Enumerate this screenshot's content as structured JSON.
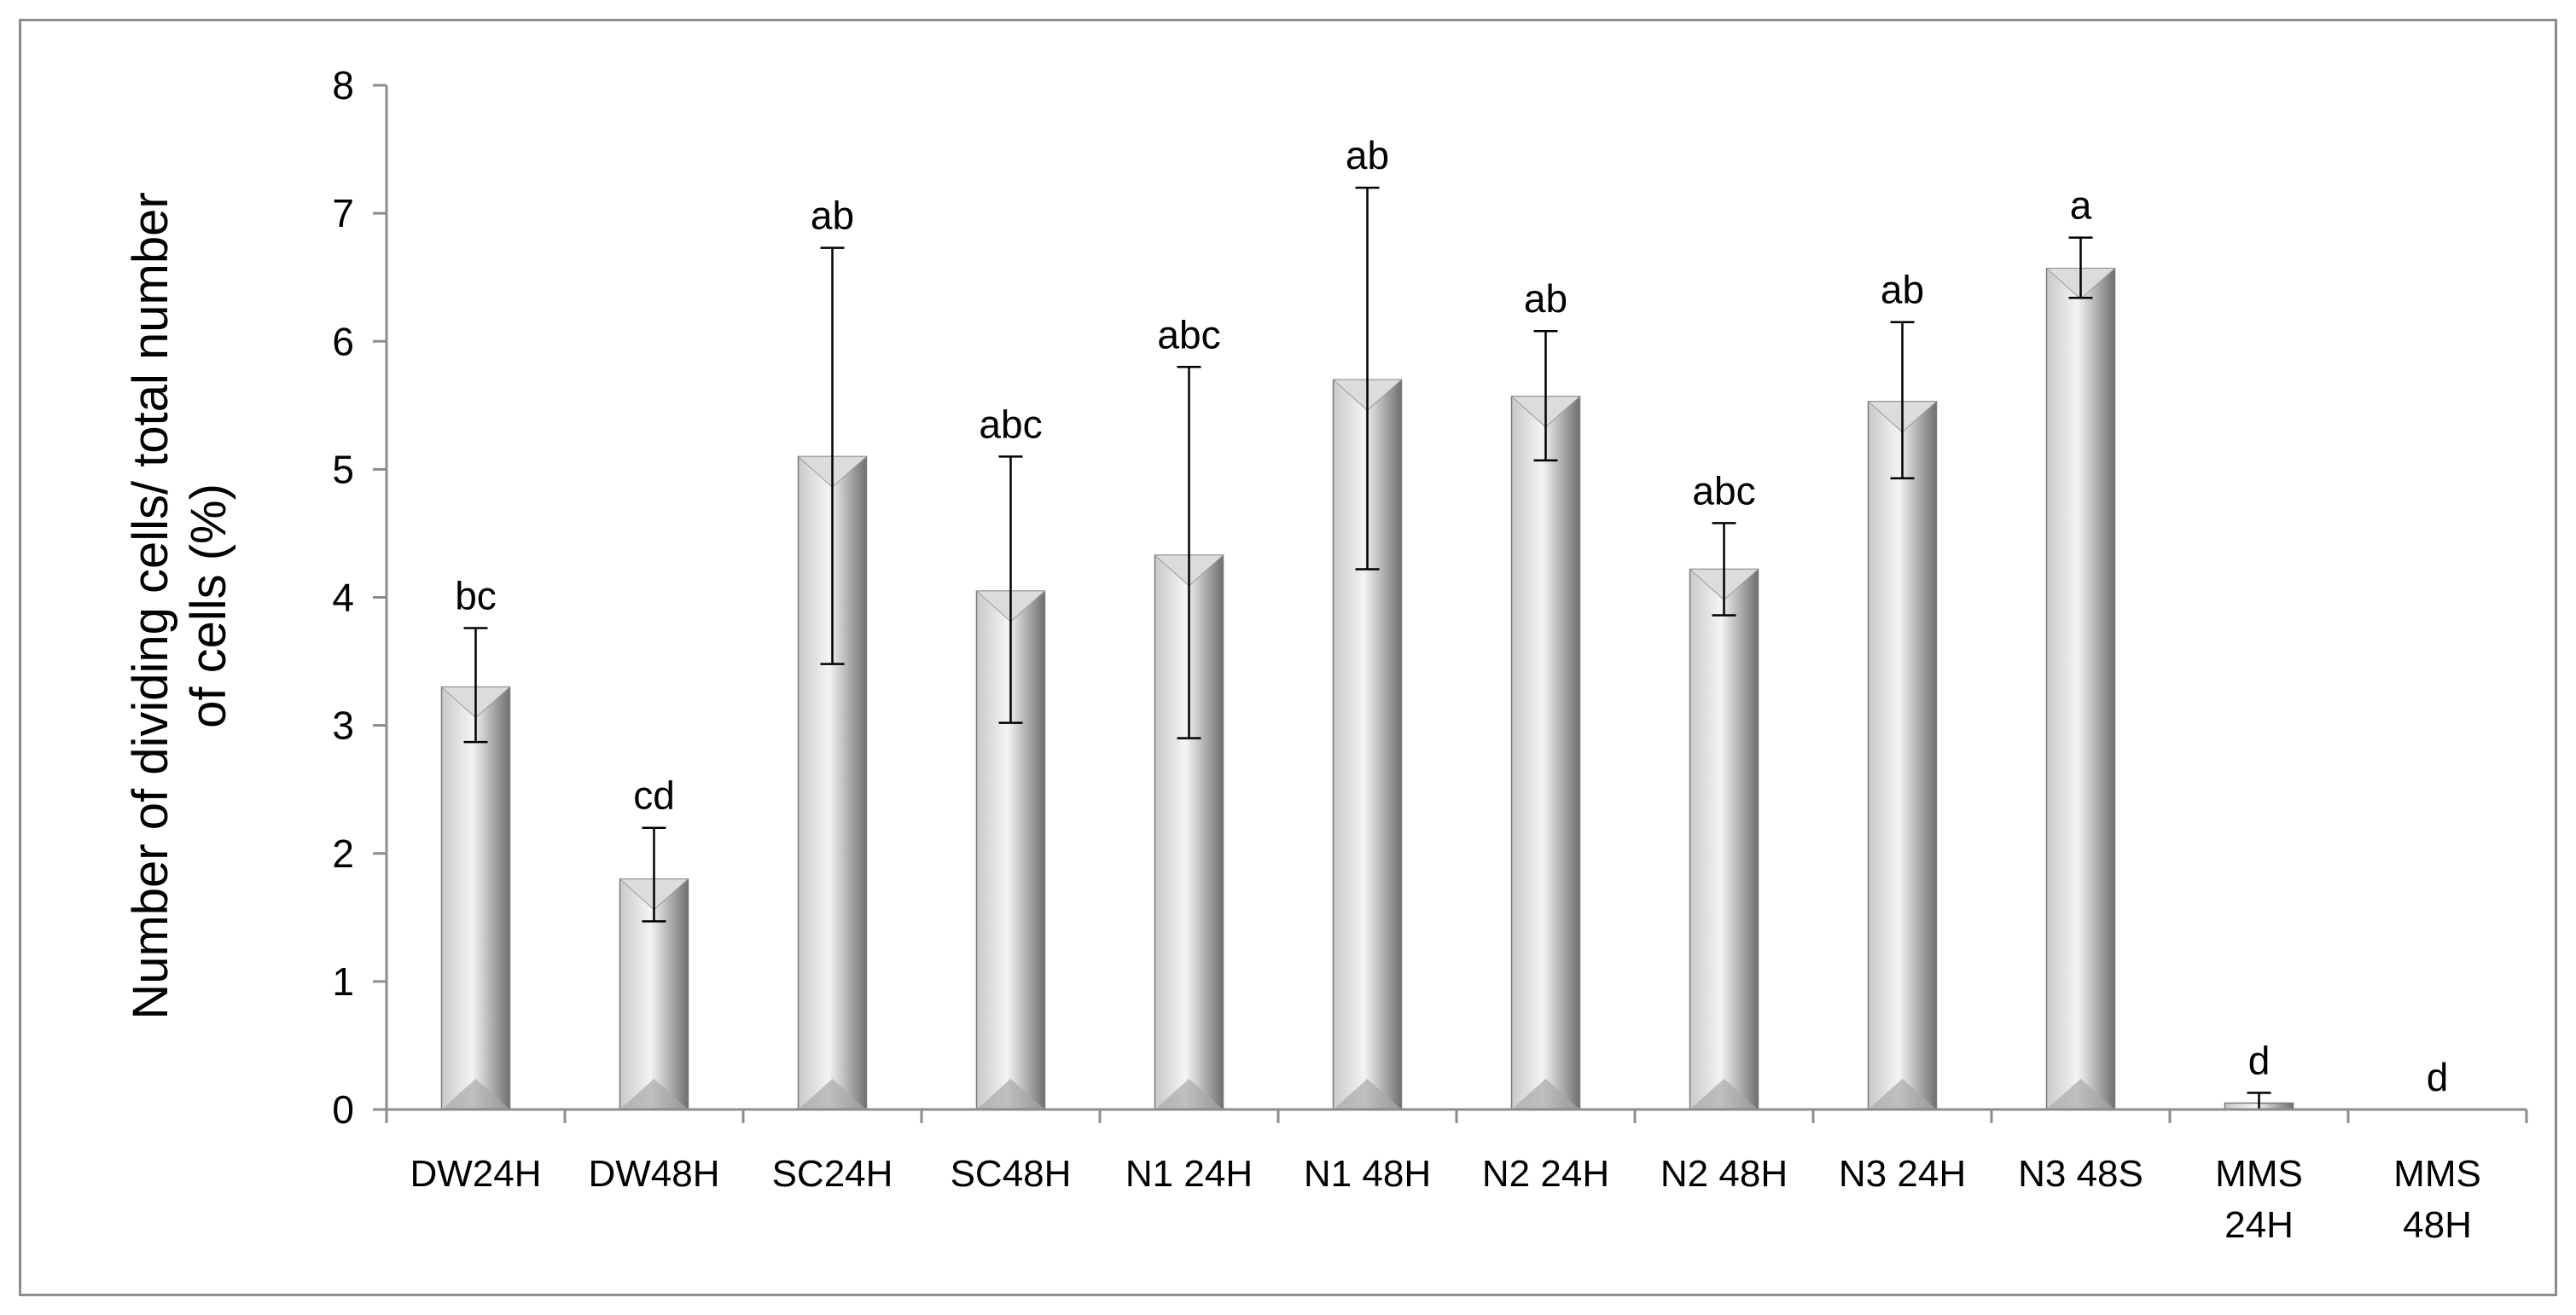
{
  "chart_data": {
    "type": "bar",
    "categories": [
      [
        "DW24H"
      ],
      [
        "DW48H"
      ],
      [
        "SC24H"
      ],
      [
        "SC48H"
      ],
      [
        "N1 24H"
      ],
      [
        "N1 48H"
      ],
      [
        "N2 24H"
      ],
      [
        "N2 48H"
      ],
      [
        "N3 24H"
      ],
      [
        "N3 48S"
      ],
      [
        "MMS",
        "24H"
      ],
      [
        "MMS",
        "48H"
      ]
    ],
    "values": [
      3.3,
      1.8,
      5.1,
      4.05,
      4.33,
      5.7,
      5.57,
      4.22,
      5.53,
      6.57,
      0.05,
      0
    ],
    "error_lower": [
      2.87,
      1.47,
      3.48,
      3.02,
      2.9,
      4.22,
      5.07,
      3.86,
      4.93,
      6.34,
      0.0,
      null
    ],
    "error_upper": [
      3.76,
      2.2,
      6.73,
      5.1,
      5.8,
      7.2,
      6.08,
      4.58,
      6.15,
      6.81,
      0.13,
      null
    ],
    "significance": [
      "bc",
      "cd",
      "ab",
      "abc",
      "abc",
      "ab",
      "ab",
      "abc",
      "ab",
      "a",
      "d",
      "d"
    ],
    "ylabel_lines": [
      "Number of dividing cells/ total number",
      "of cells (%)"
    ],
    "xlabel": "",
    "title": "",
    "ylim": [
      0,
      8
    ],
    "yticks": [
      0,
      1,
      2,
      3,
      4,
      5,
      6,
      7,
      8
    ],
    "grid": false,
    "legend": "none",
    "colors": {
      "bar_light": "#f4f4f4",
      "bar_mid": "#c9c9c9",
      "bar_dark": "#6f6f6f",
      "axis": "#8c8c8c",
      "error_bar": "#000000",
      "frame": "#8c8c8c"
    }
  }
}
